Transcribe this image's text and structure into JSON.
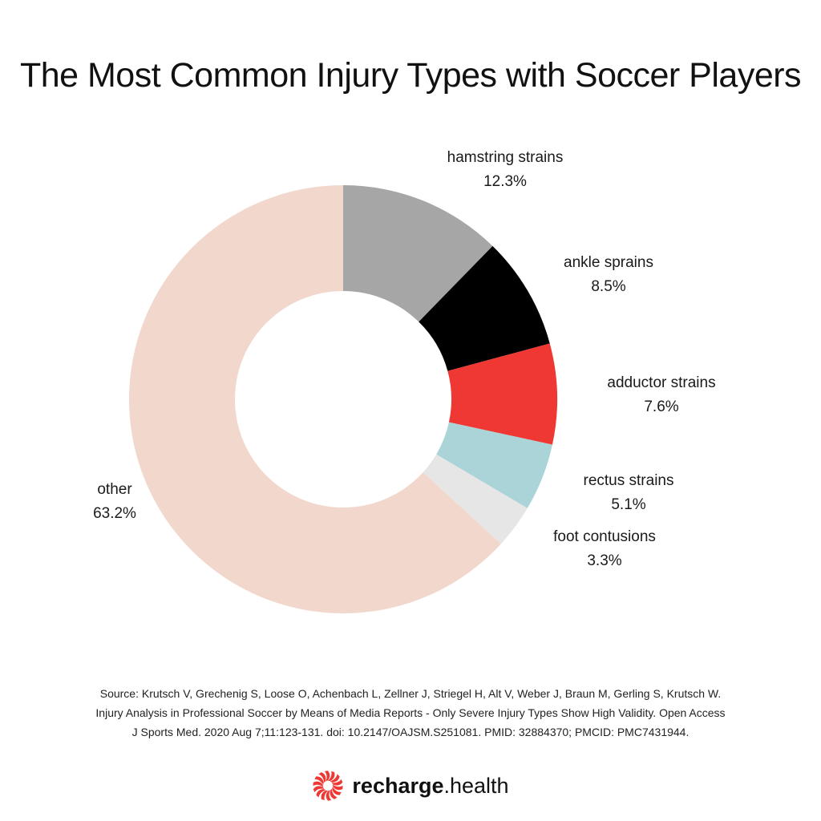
{
  "chart_data": {
    "type": "pie",
    "title": "The Most Common Injury Types with Soccer Players",
    "donut": true,
    "slices": [
      {
        "label": "hamstring strains",
        "value": 12.3,
        "display": "12.3%",
        "color": "#a6a6a6"
      },
      {
        "label": "ankle sprains",
        "value": 8.5,
        "display": "8.5%",
        "color": "#000000"
      },
      {
        "label": "adductor strains",
        "value": 7.6,
        "display": "7.6%",
        "color": "#ef3833"
      },
      {
        "label": "rectus strains",
        "value": 5.1,
        "display": "5.1%",
        "color": "#aad4d7"
      },
      {
        "label": "foot contusions",
        "value": 3.3,
        "display": "3.3%",
        "color": "#e6e6e6"
      },
      {
        "label": "other",
        "value": 63.2,
        "display": "63.2%",
        "color": "#f2d8cc"
      }
    ]
  },
  "source": {
    "lines": [
      "Source: Krutsch V, Grechenig S, Loose O, Achenbach L, Zellner J, Striegel H, Alt V, Weber J, Braun M, Gerling S, Krutsch W.",
      "Injury Analysis in Professional Soccer by Means of Media Reports - Only Severe Injury Types Show High Validity. Open Access",
      "J Sports Med. 2020 Aug 7;11:123-131. doi: 10.2147/OAJSM.S251081. PMID: 32884370; PMCID: PMC7431944."
    ]
  },
  "brand": {
    "bold": "recharge",
    "rest": ".health",
    "logo_icon": "spiral-logo-icon",
    "logo_color": "#ef3833"
  }
}
